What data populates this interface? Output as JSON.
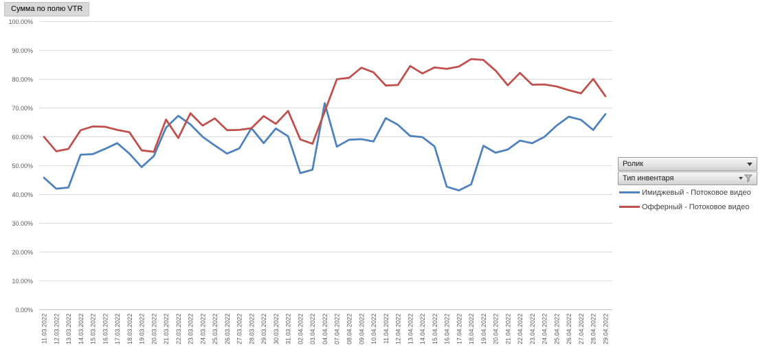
{
  "pivot_button": {
    "label": "Сумма по полю VTR"
  },
  "clipped_fragment": ")",
  "field_buttons": [
    {
      "label": "Ролик",
      "has_filter": false
    },
    {
      "label": "Тип инвентаря",
      "has_filter": true
    }
  ],
  "colors": {
    "series_blue": "#4F81BD",
    "series_red": "#C0504D",
    "gridline": "#D9D9D9",
    "axis_line": "#BFBFBF",
    "tick_text": "#595959"
  },
  "chart_data": {
    "type": "line",
    "title": "",
    "xlabel": "",
    "ylabel": "",
    "grid": true,
    "legend_position": "right",
    "ylim": [
      0,
      100
    ],
    "y_ticks": [
      0,
      10,
      20,
      30,
      40,
      50,
      60,
      70,
      80,
      90,
      100
    ],
    "y_tick_labels": [
      "0.00%",
      "10.00%",
      "20.00%",
      "30.00%",
      "40.00%",
      "50.00%",
      "60.00%",
      "70.00%",
      "80.00%",
      "90.00%",
      "100.00%"
    ],
    "categories": [
      "11.03.2022",
      "12.03.2022",
      "13.03.2022",
      "14.03.2022",
      "15.03.2022",
      "16.03.2022",
      "17.03.2022",
      "18.03.2022",
      "19.03.2022",
      "20.03.2022",
      "21.03.2022",
      "22.03.2022",
      "23.03.2022",
      "24.03.2022",
      "25.03.2022",
      "26.03.2022",
      "27.03.2022",
      "28.03.2022",
      "29.03.2022",
      "30.03.2022",
      "31.03.2022",
      "02.04.2022",
      "03.04.2022",
      "04.04.2022",
      "07.04.2022",
      "08.04.2022",
      "09.04.2022",
      "10.04.2022",
      "11.04.2022",
      "12.04.2022",
      "13.04.2022",
      "14.04.2022",
      "15.04.2022",
      "16.04.2022",
      "17.04.2022",
      "18.04.2022",
      "19.04.2022",
      "20.04.2022",
      "21.04.2022",
      "22.04.2022",
      "23.04.2022",
      "24.04.2022",
      "25.04.2022",
      "26.04.2022",
      "27.04.2022",
      "28.04.2022",
      "29.04.2022"
    ],
    "series": [
      {
        "name": "Имиджевый - Потоковое видео",
        "color": "#4F81BD",
        "values": [
          45.8,
          42.0,
          42.4,
          53.8,
          54.0,
          55.8,
          57.8,
          54.2,
          49.5,
          53.3,
          63.2,
          67.3,
          64.3,
          60.0,
          57.0,
          54.2,
          56.0,
          63.0,
          57.8,
          62.9,
          60.2,
          47.4,
          48.6,
          71.7,
          56.6,
          59.0,
          59.2,
          58.4,
          66.5,
          64.2,
          60.3,
          59.9,
          56.7,
          42.7,
          41.4,
          43.5,
          56.9,
          54.5,
          55.6,
          58.7,
          57.8,
          60.0,
          63.9,
          67.0,
          65.9,
          62.4,
          67.9
        ]
      },
      {
        "name": "Офферный - Потоковое видео",
        "color": "#C0504D",
        "values": [
          60.0,
          55.0,
          55.8,
          62.3,
          63.6,
          63.5,
          62.4,
          61.6,
          55.3,
          54.8,
          66.0,
          59.6,
          68.2,
          63.9,
          66.4,
          62.3,
          62.4,
          63.0,
          67.2,
          64.5,
          69.0,
          59.1,
          57.6,
          68.8,
          80.0,
          80.5,
          84.0,
          82.4,
          77.8,
          78.0,
          84.6,
          82.0,
          84.1,
          83.6,
          84.4,
          87.0,
          86.7,
          83.0,
          77.9,
          82.2,
          78.1,
          78.2,
          77.5,
          76.2,
          75.1,
          80.1,
          74.1
        ]
      }
    ]
  }
}
